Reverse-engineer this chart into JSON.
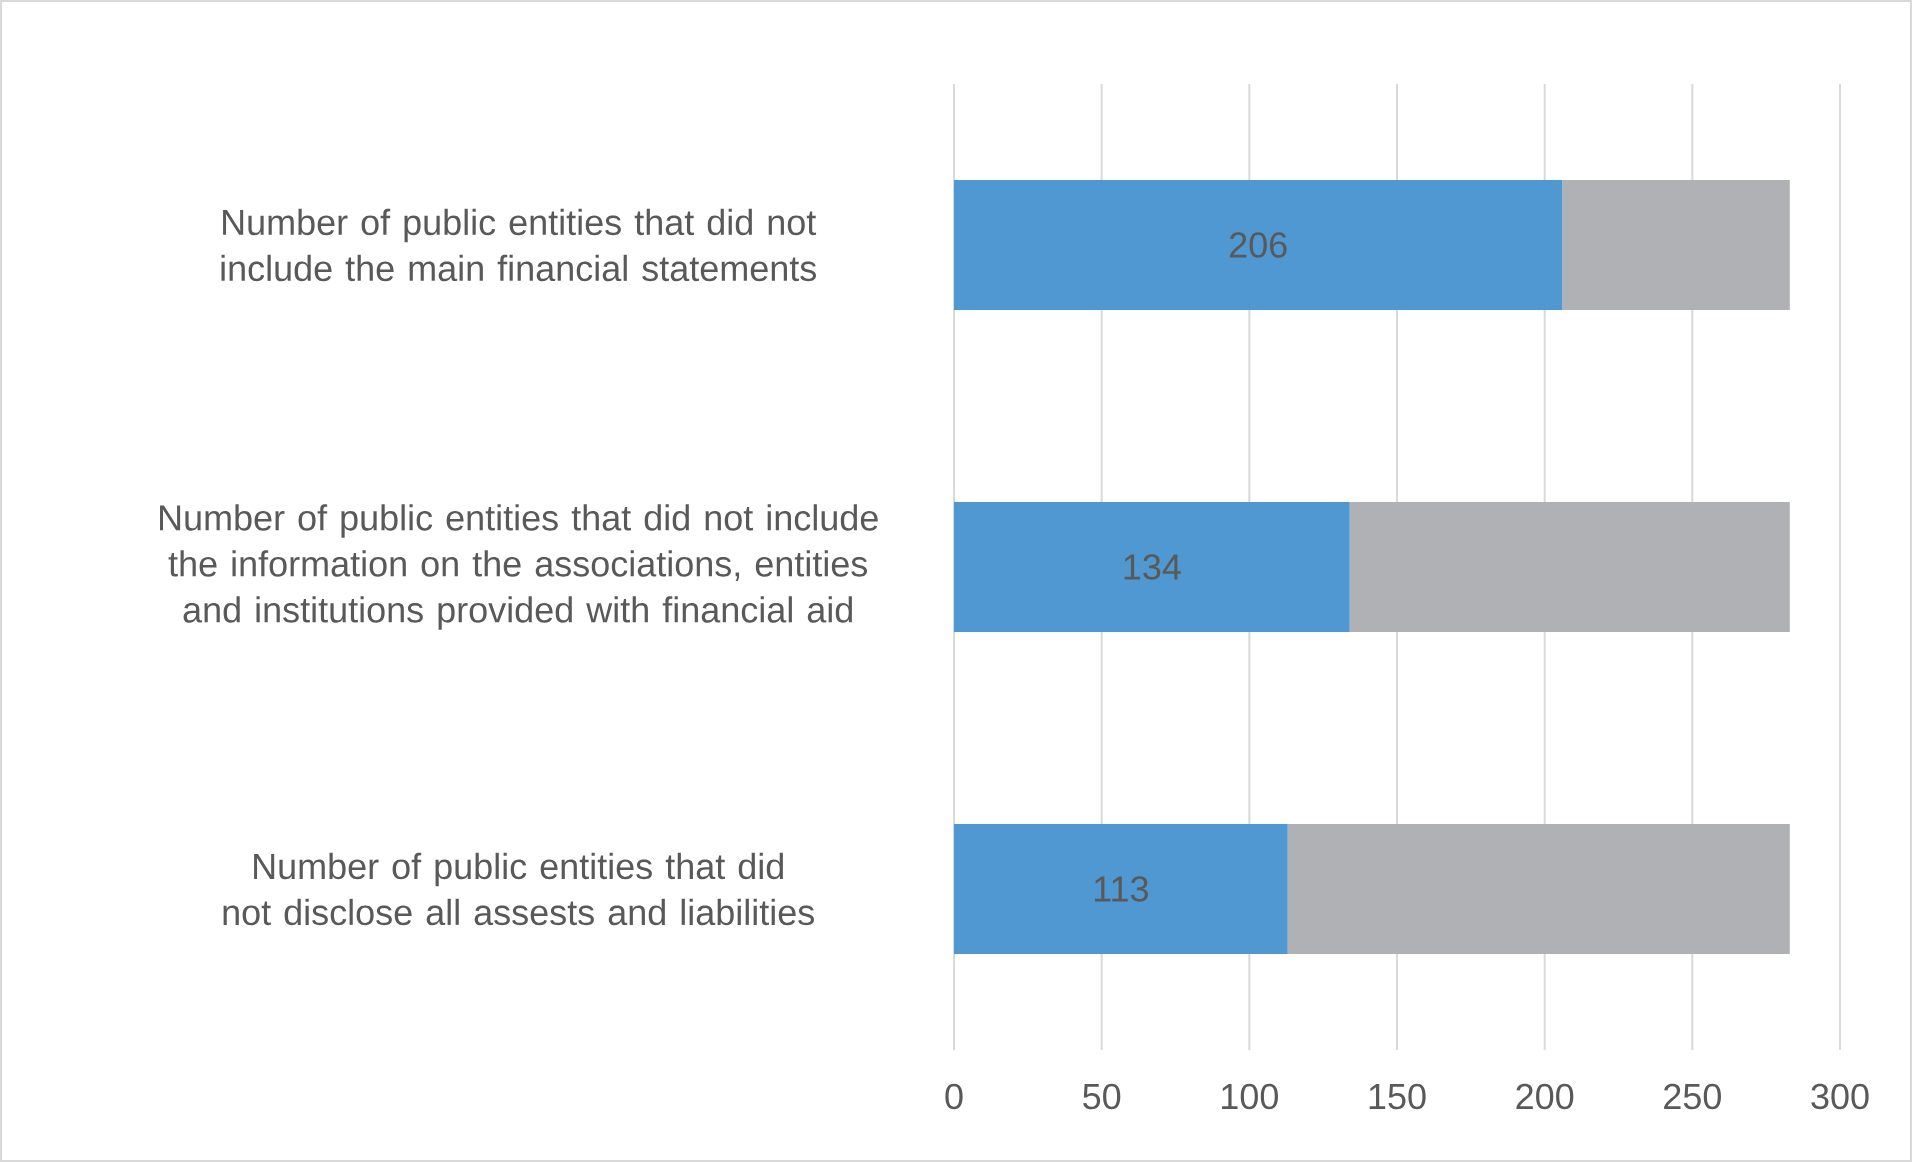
{
  "chart_data": {
    "type": "bar",
    "orientation": "horizontal",
    "stacked": true,
    "categories": [
      "Number of public entities that did not include the main financial statements",
      "Number of public entities that did not include the information on the associations, entities and institutions provided with financial aid",
      "Number of public entities that did not disclose all assests and liabilities"
    ],
    "series": [
      {
        "color": "#5098d2",
        "values": [
          206,
          134,
          113
        ],
        "value_labels": [
          "206",
          "134",
          "113"
        ]
      },
      {
        "color": "#b0b1b4",
        "values": [
          77,
          149,
          170
        ]
      }
    ],
    "xlim": [
      0,
      300
    ],
    "xticks": [
      0,
      50,
      100,
      150,
      200,
      250,
      300
    ],
    "grid": "x"
  }
}
